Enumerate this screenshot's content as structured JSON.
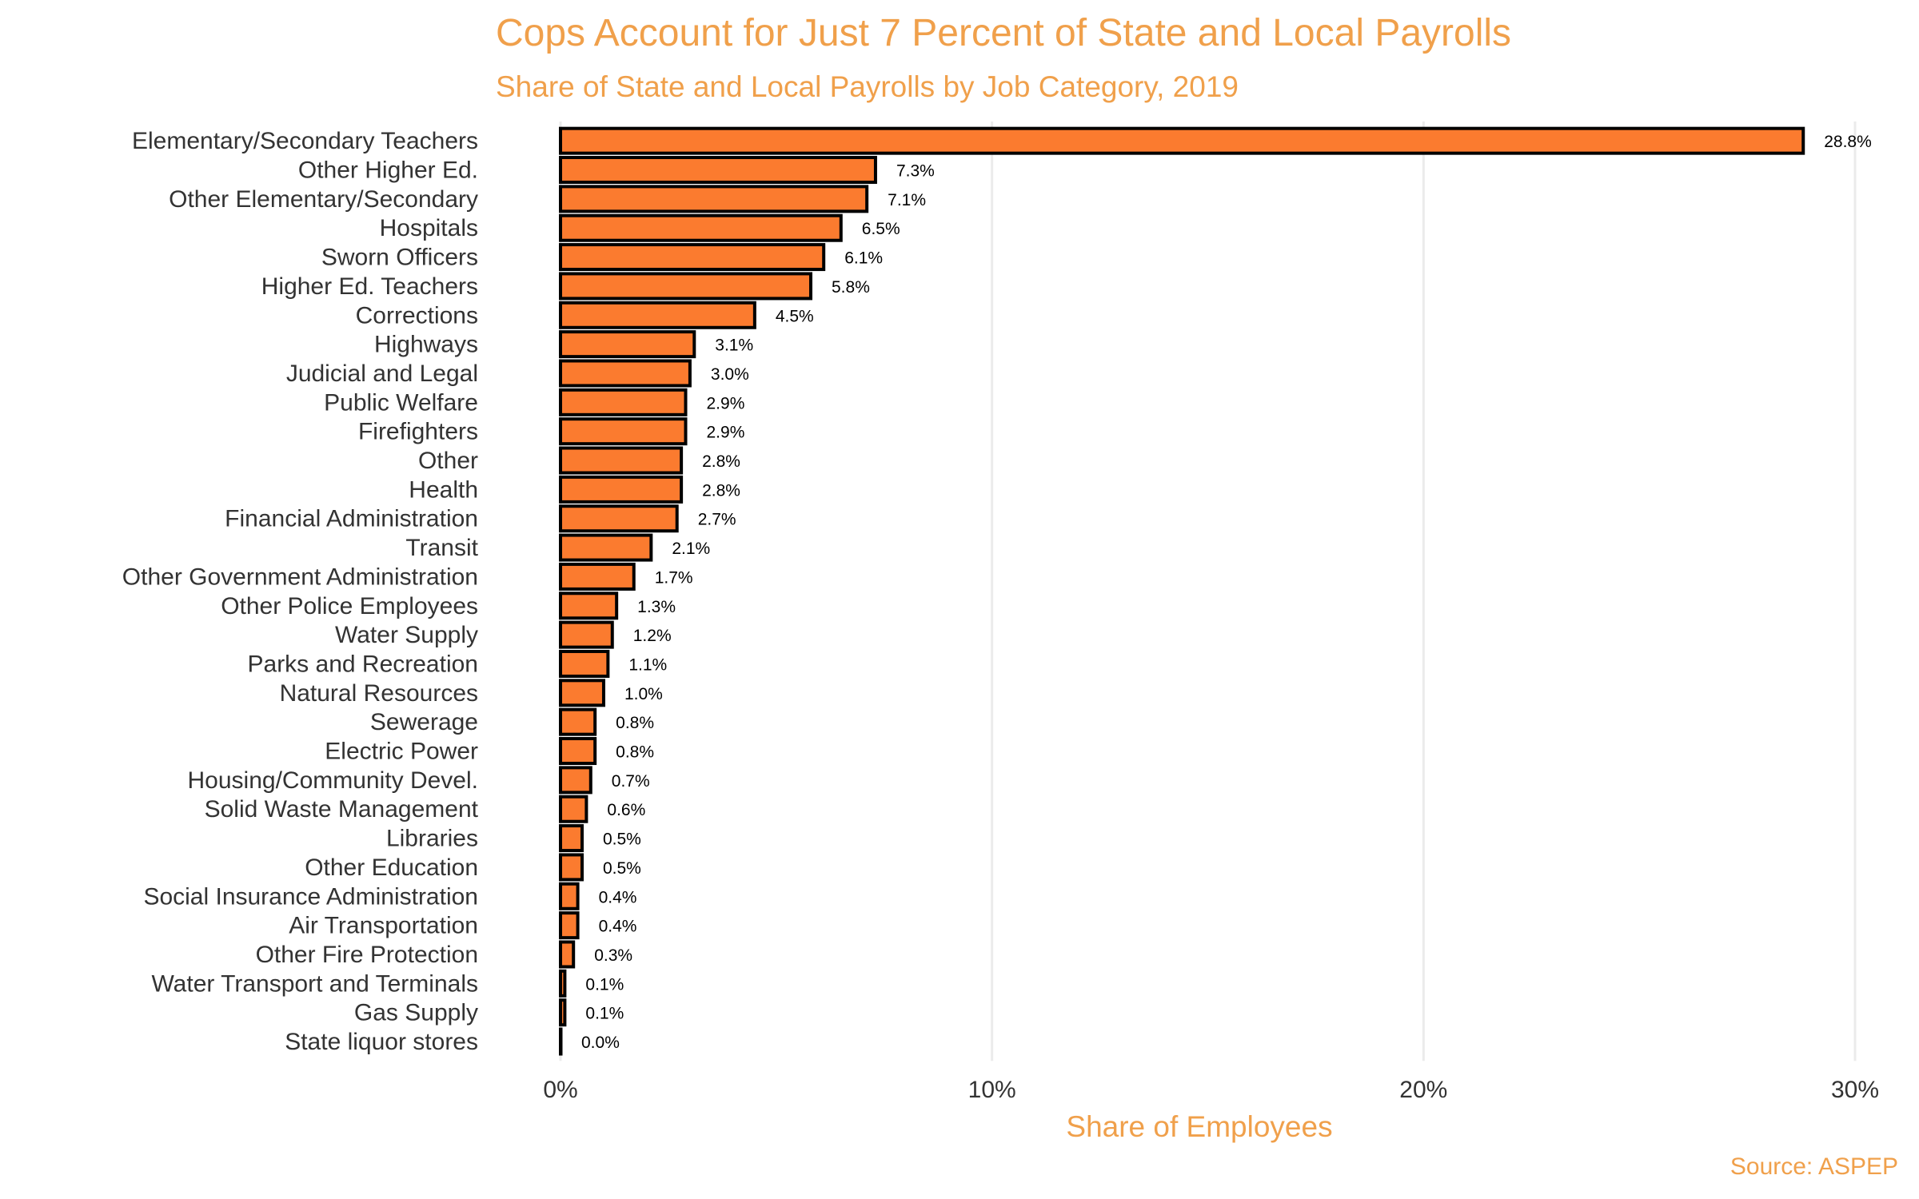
{
  "chart_data": {
    "type": "bar",
    "orientation": "horizontal",
    "title": "Cops Account for Just 7 Percent of State and Local Payrolls",
    "subtitle": "Share of State and Local Payrolls by Job Category, 2019",
    "xlabel": "Share of Employees",
    "ylabel": "",
    "caption": "Source: ASPEP",
    "xlim": [
      0,
      30
    ],
    "x_ticks": [
      0,
      10,
      20,
      30
    ],
    "x_tick_labels": [
      "0%",
      "10%",
      "20%",
      "30%"
    ],
    "grid": true,
    "legend": "none",
    "bar_color": "#fb7b2f",
    "bar_outline": "#000000",
    "categories": [
      "Elementary/Secondary Teachers",
      "Other Higher Ed.",
      "Other Elementary/Secondary",
      "Hospitals",
      "Sworn Officers",
      "Higher Ed. Teachers",
      "Corrections",
      "Highways",
      "Judicial and Legal",
      "Public Welfare",
      "Firefighters",
      "Other",
      "Health",
      "Financial Administration",
      "Transit",
      "Other Government Administration",
      "Other Police Employees",
      "Water Supply",
      "Parks and Recreation",
      "Natural Resources",
      "Sewerage",
      "Electric Power",
      "Housing/Community Devel.",
      "Solid Waste Management",
      "Libraries",
      "Other Education",
      "Social Insurance Administration",
      "Air Transportation",
      "Other Fire Protection",
      "Water Transport and Terminals",
      "Gas Supply",
      "State liquor stores"
    ],
    "values": [
      28.8,
      7.3,
      7.1,
      6.5,
      6.1,
      5.8,
      4.5,
      3.1,
      3.0,
      2.9,
      2.9,
      2.8,
      2.8,
      2.7,
      2.1,
      1.7,
      1.3,
      1.2,
      1.1,
      1.0,
      0.8,
      0.8,
      0.7,
      0.6,
      0.5,
      0.5,
      0.4,
      0.4,
      0.3,
      0.1,
      0.1,
      0.0
    ],
    "data_labels": [
      "28.8%",
      "7.3%",
      "7.1%",
      "6.5%",
      "6.1%",
      "5.8%",
      "4.5%",
      "3.1%",
      "3.0%",
      "2.9%",
      "2.9%",
      "2.8%",
      "2.8%",
      "2.7%",
      "2.1%",
      "1.7%",
      "1.3%",
      "1.2%",
      "1.1%",
      "1.0%",
      "0.8%",
      "0.8%",
      "0.7%",
      "0.6%",
      "0.5%",
      "0.5%",
      "0.4%",
      "0.4%",
      "0.3%",
      "0.1%",
      "0.1%",
      "0.0%"
    ]
  }
}
